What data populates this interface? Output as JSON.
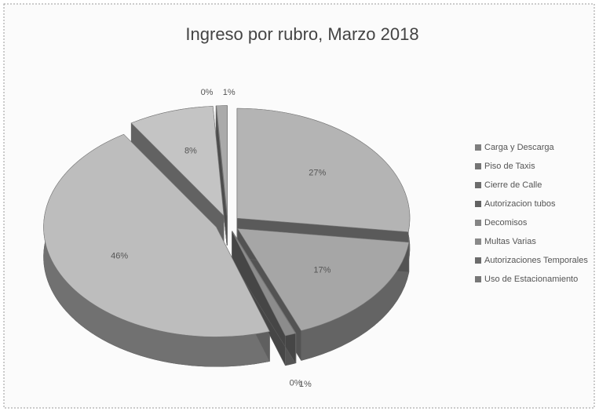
{
  "chart_data": {
    "type": "pie",
    "title": "Ingreso por rubro, Marzo 2018",
    "categories": [
      "Carga y Descarga",
      "Piso de Taxis",
      "Cierre de Calle",
      "Autorizacion tubos",
      "Decomisos",
      "Multas Varias",
      "Autorizaciones Temporales",
      "Uso de Estacionamiento"
    ],
    "values": [
      27,
      17,
      0,
      1,
      46,
      8,
      0,
      1
    ],
    "value_labels": [
      "27%",
      "17%",
      "0%",
      "1%",
      "46%",
      "8%",
      "0%",
      "1%"
    ],
    "colors": [
      "#b4b4b4",
      "#a6a6a6",
      "#9a9a9a",
      "#8c8c8c",
      "#bdbdbd",
      "#c4c4c4",
      "#999999",
      "#aaaaaa"
    ],
    "legend": "right"
  }
}
